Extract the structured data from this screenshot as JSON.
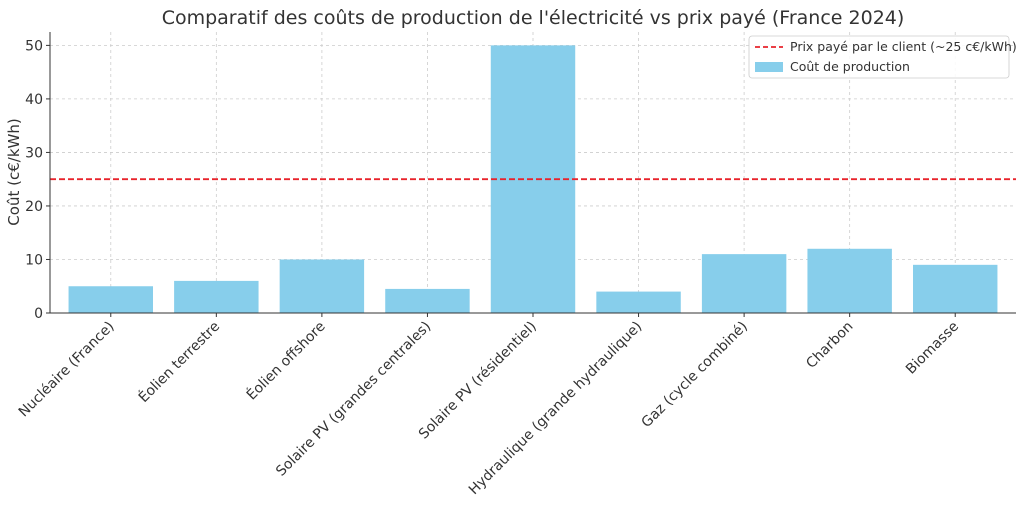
{
  "chart_data": {
    "type": "bar",
    "title": "Comparatif des coûts de production de l'électricité vs prix payé (France 2024)",
    "xlabel": "",
    "ylabel": "Coût (c€/kWh)",
    "ylim": [
      0,
      52.5
    ],
    "yticks": [
      0,
      10,
      20,
      30,
      40,
      50
    ],
    "grid": true,
    "legend_position": "top-right",
    "categories": [
      "Nucléaire (France)",
      "Éolien terrestre",
      "Éolien offshore",
      "Solaire PV (grandes centrales)",
      "Solaire PV (résidentiel)",
      "Hydraulique (grande hydraulique)",
      "Gaz (cycle combiné)",
      "Charbon",
      "Biomasse"
    ],
    "series": [
      {
        "name": "Coût de production",
        "color": "#87ceeb",
        "values": [
          5,
          6,
          10,
          4.5,
          50,
          4,
          11,
          12,
          9
        ]
      }
    ],
    "reference_line": {
      "name": "Prix payé par le client (~25 c€/kWh)",
      "value": 25,
      "color": "#e8242c",
      "style": "dashed"
    }
  }
}
